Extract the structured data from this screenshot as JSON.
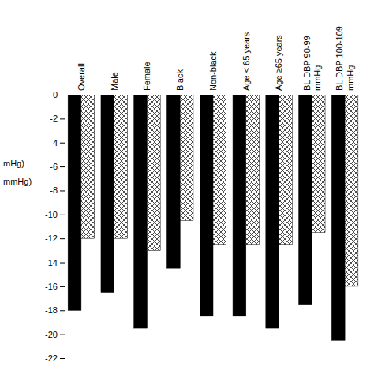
{
  "chart_data": {
    "type": "bar",
    "categories": [
      "Overall",
      "Male",
      "Female",
      "Black",
      "Non-black",
      "Age < 65 years",
      "Age ≥65 years",
      "BL DBP 90-99\nmmHg",
      "BL DBP 100-109\nmmHg"
    ],
    "series": [
      {
        "color": "#000000",
        "values": [
          -18.0,
          -16.5,
          -19.5,
          -14.5,
          -18.5,
          -18.5,
          -19.5,
          -17.5,
          -20.5
        ]
      },
      {
        "color": "#ffffff",
        "values": [
          -12.0,
          -12.0,
          -13.0,
          -10.5,
          -12.5,
          -12.5,
          -12.5,
          -11.5,
          -16.0
        ]
      }
    ],
    "ylim": [
      -22,
      0
    ],
    "yticks": [
      0,
      -2,
      -4,
      -6,
      -8,
      -10,
      -12,
      -14,
      -16,
      -18,
      -20,
      -22
    ],
    "annotations": [
      "mHg)",
      "mmHg)"
    ]
  }
}
